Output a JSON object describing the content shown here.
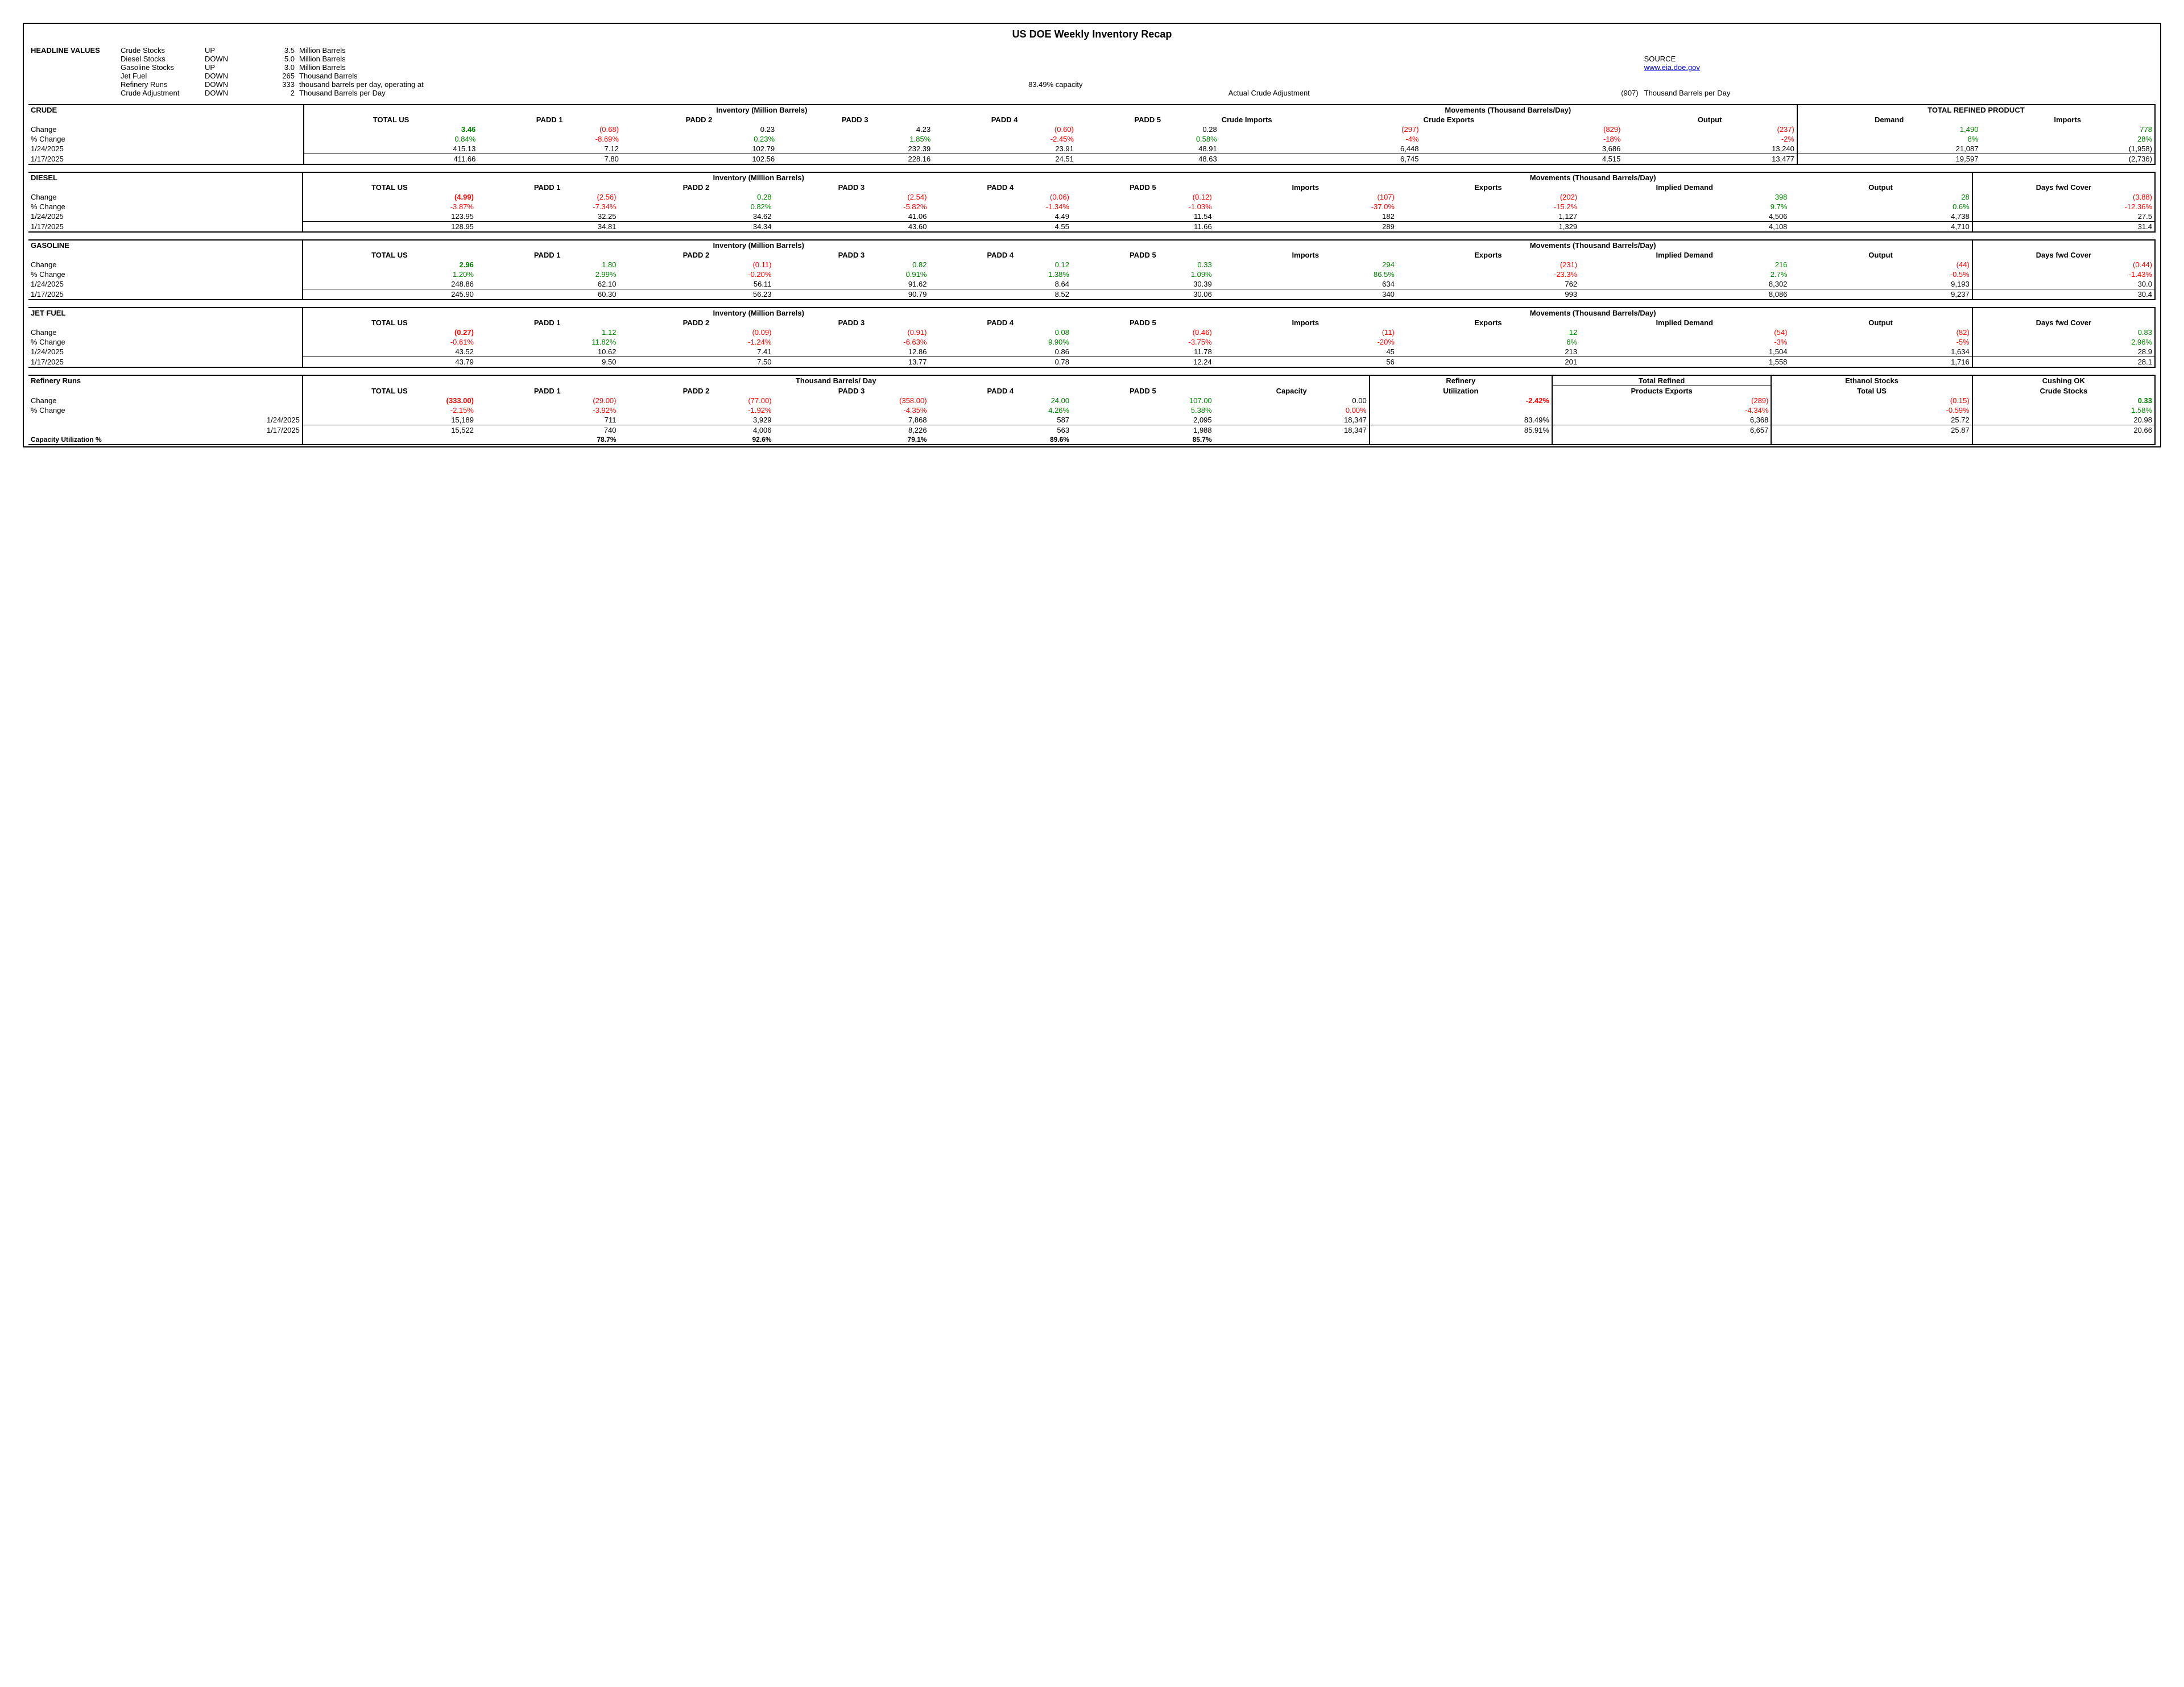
{
  "title": "US DOE Weekly Inventory Recap",
  "source_label": "SOURCE",
  "source_link_text": "www.eia.doe.gov",
  "source_link_href": "http://www.eia.doe.gov",
  "headline": {
    "label": "HEADLINE VALUES",
    "rows": [
      {
        "item": "Crude Stocks",
        "dir": "UP",
        "val": "3.5",
        "unit": "Million Barrels"
      },
      {
        "item": "Diesel Stocks",
        "dir": "DOWN",
        "val": "5.0",
        "unit": "Million Barrels"
      },
      {
        "item": "Gasoline Stocks",
        "dir": "UP",
        "val": "3.0",
        "unit": "Million Barrels"
      },
      {
        "item": "Jet Fuel",
        "dir": "DOWN",
        "val": "265",
        "unit": "Thousand Barrels"
      },
      {
        "item": "Refinery Runs",
        "dir": "DOWN",
        "val": "333",
        "unit": "thousand barrels per day, operating at",
        "extra": "83.49% capacity"
      },
      {
        "item": "Crude Adjustment",
        "dir": "DOWN",
        "val": "2",
        "unit": "Thousand Barrels per Day",
        "aca_label": "Actual Crude Adjustment",
        "aca_val": "(907)",
        "aca_unit": "Thousand Barrels per Day"
      }
    ]
  },
  "crude": {
    "name": "CRUDE",
    "inv_hdr": "Inventory (Million Barrels)",
    "mov_hdr": "Movements (Thousand Barrels/Day)",
    "trp_hdr": "TOTAL REFINED PRODUCT",
    "cols": [
      "TOTAL US",
      "PADD 1",
      "PADD 2",
      "PADD 3",
      "PADD 4",
      "PADD 5",
      "Crude Imports",
      "Crude Exports",
      "Output",
      "Demand",
      "Imports"
    ],
    "row_labels": [
      "Change",
      "% Change",
      "1/24/2025",
      "1/17/2025"
    ],
    "rows": [
      [
        {
          "v": "3.46",
          "c": "pos",
          "b": 1,
          "bg": 1
        },
        {
          "v": "(0.68)",
          "c": "neg"
        },
        {
          "v": "0.23"
        },
        {
          "v": "4.23"
        },
        {
          "v": "(0.60)",
          "c": "neg"
        },
        {
          "v": "0.28"
        },
        {
          "v": "(297)",
          "c": "neg"
        },
        {
          "v": "(829)",
          "c": "neg"
        },
        {
          "v": "(237)",
          "c": "neg"
        },
        {
          "v": "1,490",
          "c": "pos"
        },
        {
          "v": "778",
          "c": "pos"
        }
      ],
      [
        {
          "v": "0.84%",
          "c": "pos"
        },
        {
          "v": "-8.69%",
          "c": "neg"
        },
        {
          "v": "0.23%",
          "c": "pos"
        },
        {
          "v": "1.85%",
          "c": "pos"
        },
        {
          "v": "-2.45%",
          "c": "neg"
        },
        {
          "v": "0.58%",
          "c": "pos"
        },
        {
          "v": "-4%",
          "c": "neg"
        },
        {
          "v": "-18%",
          "c": "neg"
        },
        {
          "v": "-2%",
          "c": "neg"
        },
        {
          "v": "8%",
          "c": "pos"
        },
        {
          "v": "28%",
          "c": "pos"
        }
      ],
      [
        {
          "v": "415.13"
        },
        {
          "v": "7.12"
        },
        {
          "v": "102.79"
        },
        {
          "v": "232.39"
        },
        {
          "v": "23.91"
        },
        {
          "v": "48.91"
        },
        {
          "v": "6,448"
        },
        {
          "v": "3,686"
        },
        {
          "v": "13,240"
        },
        {
          "v": "21,087"
        },
        {
          "v": "(1,958)"
        }
      ],
      [
        {
          "v": "411.66"
        },
        {
          "v": "7.80"
        },
        {
          "v": "102.56"
        },
        {
          "v": "228.16"
        },
        {
          "v": "24.51"
        },
        {
          "v": "48.63"
        },
        {
          "v": "6,745"
        },
        {
          "v": "4,515"
        },
        {
          "v": "13,477"
        },
        {
          "v": "19,597"
        },
        {
          "v": "(2,736)"
        }
      ]
    ]
  },
  "diesel": {
    "name": "DIESEL",
    "inv_hdr": "Inventory (Million Barrels)",
    "mov_hdr": "Movements (Thousand Barrels/Day)",
    "cols": [
      "TOTAL US",
      "PADD 1",
      "PADD 2",
      "PADD 3",
      "PADD 4",
      "PADD 5",
      "Imports",
      "Exports",
      "Implied Demand",
      "Output",
      "Days fwd Cover"
    ],
    "row_labels": [
      "Change",
      "% Change",
      "1/24/2025",
      "1/17/2025"
    ],
    "rows": [
      [
        {
          "v": "(4.99)",
          "c": "neg",
          "b": 1,
          "bg": 1
        },
        {
          "v": "(2.56)",
          "c": "neg"
        },
        {
          "v": "0.28",
          "c": "pos"
        },
        {
          "v": "(2.54)",
          "c": "neg"
        },
        {
          "v": "(0.06)",
          "c": "neg"
        },
        {
          "v": "(0.12)",
          "c": "neg"
        },
        {
          "v": "(107)",
          "c": "neg"
        },
        {
          "v": "(202)",
          "c": "neg"
        },
        {
          "v": "398",
          "c": "pos"
        },
        {
          "v": "28",
          "c": "pos"
        },
        {
          "v": "(3.88)",
          "c": "neg"
        }
      ],
      [
        {
          "v": "-3.87%",
          "c": "neg"
        },
        {
          "v": "-7.34%",
          "c": "neg"
        },
        {
          "v": "0.82%",
          "c": "pos"
        },
        {
          "v": "-5.82%",
          "c": "neg"
        },
        {
          "v": "-1.34%",
          "c": "neg"
        },
        {
          "v": "-1.03%",
          "c": "neg"
        },
        {
          "v": "-37.0%",
          "c": "neg"
        },
        {
          "v": "-15.2%",
          "c": "neg"
        },
        {
          "v": "9.7%",
          "c": "pos"
        },
        {
          "v": "0.6%",
          "c": "pos"
        },
        {
          "v": "-12.36%",
          "c": "neg"
        }
      ],
      [
        {
          "v": "123.95"
        },
        {
          "v": "32.25"
        },
        {
          "v": "34.62"
        },
        {
          "v": "41.06"
        },
        {
          "v": "4.49"
        },
        {
          "v": "11.54"
        },
        {
          "v": "182"
        },
        {
          "v": "1,127"
        },
        {
          "v": "4,506"
        },
        {
          "v": "4,738"
        },
        {
          "v": "27.5"
        }
      ],
      [
        {
          "v": "128.95"
        },
        {
          "v": "34.81"
        },
        {
          "v": "34.34"
        },
        {
          "v": "43.60"
        },
        {
          "v": "4.55"
        },
        {
          "v": "11.66"
        },
        {
          "v": "289"
        },
        {
          "v": "1,329"
        },
        {
          "v": "4,108"
        },
        {
          "v": "4,710"
        },
        {
          "v": "31.4"
        }
      ]
    ]
  },
  "gasoline": {
    "name": "GASOLINE",
    "inv_hdr": "Inventory (Million Barrels)",
    "mov_hdr": "Movements (Thousand Barrels/Day)",
    "cols": [
      "TOTAL US",
      "PADD 1",
      "PADD 2",
      "PADD 3",
      "PADD 4",
      "PADD 5",
      "Imports",
      "Exports",
      "Implied Demand",
      "Output",
      "Days fwd Cover"
    ],
    "row_labels": [
      "Change",
      "% Change",
      "1/24/2025",
      "1/17/2025"
    ],
    "rows": [
      [
        {
          "v": "2.96",
          "c": "pos",
          "b": 1,
          "bg": 1
        },
        {
          "v": "1.80",
          "c": "pos"
        },
        {
          "v": "(0.11)",
          "c": "neg"
        },
        {
          "v": "0.82",
          "c": "pos"
        },
        {
          "v": "0.12",
          "c": "pos"
        },
        {
          "v": "0.33",
          "c": "pos"
        },
        {
          "v": "294",
          "c": "pos"
        },
        {
          "v": "(231)",
          "c": "neg"
        },
        {
          "v": "216",
          "c": "pos"
        },
        {
          "v": "(44)",
          "c": "neg"
        },
        {
          "v": "(0.44)",
          "c": "neg"
        }
      ],
      [
        {
          "v": "1.20%",
          "c": "pos"
        },
        {
          "v": "2.99%",
          "c": "pos"
        },
        {
          "v": "-0.20%",
          "c": "neg"
        },
        {
          "v": "0.91%",
          "c": "pos"
        },
        {
          "v": "1.38%",
          "c": "pos"
        },
        {
          "v": "1.09%",
          "c": "pos"
        },
        {
          "v": "86.5%",
          "c": "pos"
        },
        {
          "v": "-23.3%",
          "c": "neg"
        },
        {
          "v": "2.7%",
          "c": "pos"
        },
        {
          "v": "-0.5%",
          "c": "neg"
        },
        {
          "v": "-1.43%",
          "c": "neg"
        }
      ],
      [
        {
          "v": "248.86"
        },
        {
          "v": "62.10"
        },
        {
          "v": "56.11"
        },
        {
          "v": "91.62"
        },
        {
          "v": "8.64"
        },
        {
          "v": "30.39"
        },
        {
          "v": "634"
        },
        {
          "v": "762"
        },
        {
          "v": "8,302"
        },
        {
          "v": "9,193"
        },
        {
          "v": "30.0"
        }
      ],
      [
        {
          "v": "245.90"
        },
        {
          "v": "60.30"
        },
        {
          "v": "56.23"
        },
        {
          "v": "90.79"
        },
        {
          "v": "8.52"
        },
        {
          "v": "30.06"
        },
        {
          "v": "340"
        },
        {
          "v": "993"
        },
        {
          "v": "8,086"
        },
        {
          "v": "9,237"
        },
        {
          "v": "30.4"
        }
      ]
    ]
  },
  "jetfuel": {
    "name": "JET FUEL",
    "inv_hdr": "Inventory (Million Barrels)",
    "mov_hdr": "Movements (Thousand Barrels/Day)",
    "cols": [
      "TOTAL US",
      "PADD 1",
      "PADD 2",
      "PADD 3",
      "PADD 4",
      "PADD 5",
      "Imports",
      "Exports",
      "Implied Demand",
      "Output",
      "Days fwd Cover"
    ],
    "row_labels": [
      "Change",
      "% Change",
      "1/24/2025",
      "1/17/2025"
    ],
    "rows": [
      [
        {
          "v": "(0.27)",
          "c": "neg",
          "b": 1,
          "bg": 1
        },
        {
          "v": "1.12",
          "c": "pos"
        },
        {
          "v": "(0.09)",
          "c": "neg"
        },
        {
          "v": "(0.91)",
          "c": "neg"
        },
        {
          "v": "0.08",
          "c": "pos"
        },
        {
          "v": "(0.46)",
          "c": "neg"
        },
        {
          "v": "(11)",
          "c": "neg"
        },
        {
          "v": "12",
          "c": "pos"
        },
        {
          "v": "(54)",
          "c": "neg"
        },
        {
          "v": "(82)",
          "c": "neg"
        },
        {
          "v": "0.83",
          "c": "pos"
        }
      ],
      [
        {
          "v": "-0.61%",
          "c": "neg"
        },
        {
          "v": "11.82%",
          "c": "pos"
        },
        {
          "v": "-1.24%",
          "c": "neg"
        },
        {
          "v": "-6.63%",
          "c": "neg"
        },
        {
          "v": "9.90%",
          "c": "pos"
        },
        {
          "v": "-3.75%",
          "c": "neg"
        },
        {
          "v": "-20%",
          "c": "neg"
        },
        {
          "v": "6%",
          "c": "pos"
        },
        {
          "v": "-3%",
          "c": "neg"
        },
        {
          "v": "-5%",
          "c": "neg"
        },
        {
          "v": "2.96%",
          "c": "pos"
        }
      ],
      [
        {
          "v": "43.52"
        },
        {
          "v": "10.62"
        },
        {
          "v": "7.41"
        },
        {
          "v": "12.86"
        },
        {
          "v": "0.86"
        },
        {
          "v": "11.78"
        },
        {
          "v": "45"
        },
        {
          "v": "213"
        },
        {
          "v": "1,504"
        },
        {
          "v": "1,634"
        },
        {
          "v": "28.9"
        }
      ],
      [
        {
          "v": "43.79"
        },
        {
          "v": "9.50"
        },
        {
          "v": "7.50"
        },
        {
          "v": "13.77"
        },
        {
          "v": "0.78"
        },
        {
          "v": "12.24"
        },
        {
          "v": "56"
        },
        {
          "v": "201"
        },
        {
          "v": "1,558"
        },
        {
          "v": "1,716"
        },
        {
          "v": "28.1"
        }
      ]
    ]
  },
  "refinery": {
    "name": "Refinery Runs",
    "tbd_hdr": "Thousand Barrels/ Day",
    "ref_hdr": "Refinery",
    "trp_hdr": "Total Refined",
    "eth_hdr": "Ethanol Stocks",
    "cush_hdr": "Cushing OK",
    "cols": [
      "TOTAL US",
      "PADD 1",
      "PADD 2",
      "PADD 3",
      "PADD 4",
      "PADD 5",
      "Capacity",
      "Utilization",
      "Products Exports",
      "Total US",
      "Crude Stocks"
    ],
    "row_labels": [
      "Change",
      "% Change",
      "1/24/2025",
      "1/17/2025"
    ],
    "rows": [
      [
        {
          "v": "(333.00)",
          "c": "neg",
          "b": 1,
          "bg": 1
        },
        {
          "v": "(29.00)",
          "c": "neg"
        },
        {
          "v": "(77.00)",
          "c": "neg"
        },
        {
          "v": "(358.00)",
          "c": "neg"
        },
        {
          "v": "24.00",
          "c": "pos"
        },
        {
          "v": "107.00",
          "c": "pos"
        },
        {
          "v": "0.00"
        },
        {
          "v": "-2.42%",
          "c": "neg",
          "b": 1,
          "bg": 1
        },
        {
          "v": "(289)",
          "c": "neg"
        },
        {
          "v": "(0.15)",
          "c": "neg"
        },
        {
          "v": "0.33",
          "c": "pos",
          "b": 1
        }
      ],
      [
        {
          "v": "-2.15%",
          "c": "neg"
        },
        {
          "v": "-3.92%",
          "c": "neg"
        },
        {
          "v": "-1.92%",
          "c": "neg"
        },
        {
          "v": "-4.35%",
          "c": "neg"
        },
        {
          "v": "4.26%",
          "c": "pos"
        },
        {
          "v": "5.38%",
          "c": "pos"
        },
        {
          "v": "0.00%",
          "c": "neg"
        },
        {
          "v": ""
        },
        {
          "v": "-4.34%",
          "c": "neg"
        },
        {
          "v": "-0.59%",
          "c": "neg"
        },
        {
          "v": "1.58%",
          "c": "pos"
        }
      ],
      [
        {
          "v": "15,189"
        },
        {
          "v": "711"
        },
        {
          "v": "3,929"
        },
        {
          "v": "7,868"
        },
        {
          "v": "587"
        },
        {
          "v": "2,095"
        },
        {
          "v": "18,347"
        },
        {
          "v": "83.49%"
        },
        {
          "v": "6,368"
        },
        {
          "v": "25.72"
        },
        {
          "v": "20.98"
        }
      ],
      [
        {
          "v": "15,522"
        },
        {
          "v": "740"
        },
        {
          "v": "4,006"
        },
        {
          "v": "8,226"
        },
        {
          "v": "563"
        },
        {
          "v": "1,988"
        },
        {
          "v": "18,347"
        },
        {
          "v": "85.91%"
        },
        {
          "v": "6,657"
        },
        {
          "v": "25.87"
        },
        {
          "v": "20.66"
        }
      ]
    ],
    "cap_label": "Capacity Utilization %",
    "cap_row": [
      "",
      "78.7%",
      "92.6%",
      "79.1%",
      "89.6%",
      "85.7%",
      "",
      "",
      "",
      "",
      ""
    ]
  }
}
